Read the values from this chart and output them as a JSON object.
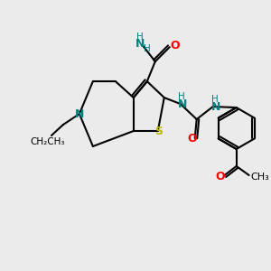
{
  "background_color": "#ebebeb",
  "bond_color": "#000000",
  "atom_colors": {
    "N": "#008080",
    "O": "#ff0000",
    "S": "#cccc00",
    "C": "#000000",
    "H": "#008080"
  },
  "figsize": [
    3.0,
    3.0
  ],
  "dpi": 100
}
